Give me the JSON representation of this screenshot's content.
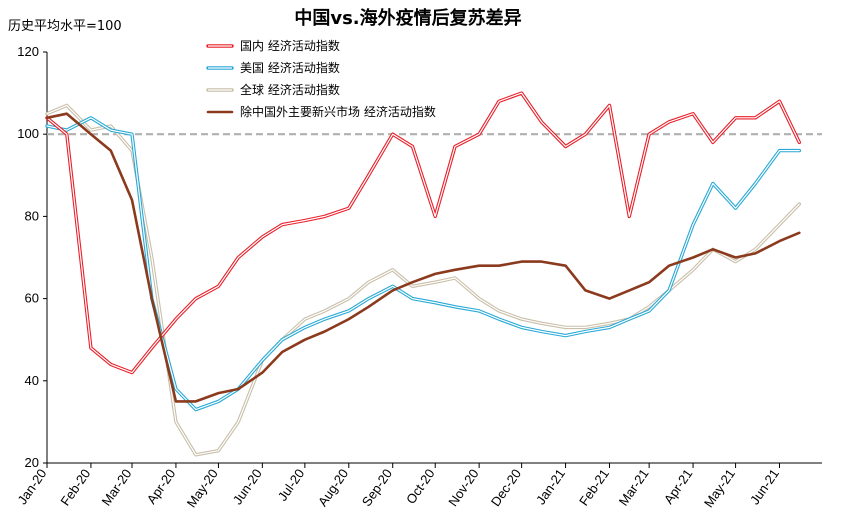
{
  "chart_data": {
    "type": "line",
    "title": "中国vs.海外疫情后复苏差异",
    "ylabel": "历史平均水平=100",
    "ylim": [
      20,
      120
    ],
    "yticks": [
      20,
      40,
      60,
      80,
      100,
      120
    ],
    "reference_line": {
      "value": 100,
      "color": "#b0b0b0",
      "style": "dashed"
    },
    "grid": false,
    "legend_position": "top-center",
    "x_tick_labels": [
      "Jan-20",
      "Feb-20",
      "Mar-20",
      "Apr-20",
      "May-20",
      "Jun-20",
      "Jul-20",
      "Aug-20",
      "Sep-20",
      "Oct-20",
      "Nov-20",
      "Dec-20",
      "Jan-21",
      "Feb-21",
      "Mar-21",
      "Apr-21",
      "May-21",
      "Jun-21"
    ],
    "x": [
      "2020-01-01",
      "2020-01-15",
      "2020-02-01",
      "2020-02-15",
      "2020-03-01",
      "2020-03-15",
      "2020-04-01",
      "2020-04-15",
      "2020-05-01",
      "2020-05-15",
      "2020-06-01",
      "2020-06-15",
      "2020-07-01",
      "2020-07-15",
      "2020-08-01",
      "2020-08-15",
      "2020-09-01",
      "2020-09-15",
      "2020-10-01",
      "2020-10-15",
      "2020-11-01",
      "2020-11-15",
      "2020-12-01",
      "2020-12-15",
      "2021-01-01",
      "2021-01-15",
      "2021-02-01",
      "2021-02-15",
      "2021-03-01",
      "2021-03-15",
      "2021-04-01",
      "2021-04-15",
      "2021-05-01",
      "2021-05-15",
      "2021-06-01",
      "2021-06-15"
    ],
    "series": [
      {
        "name": "国内 经济活动指数",
        "color": "#e8202a",
        "style": "double",
        "values": [
          104,
          100,
          48,
          44,
          42,
          48,
          55,
          60,
          63,
          70,
          75,
          78,
          79,
          80,
          82,
          90,
          100,
          97,
          80,
          97,
          100,
          108,
          110,
          103,
          97,
          100,
          107,
          80,
          100,
          103,
          105,
          98,
          104,
          104,
          108,
          98
        ]
      },
      {
        "name": "美国 经济活动指数",
        "color": "#29a9d6",
        "style": "double",
        "values": [
          102,
          101,
          104,
          101,
          100,
          60,
          38,
          33,
          35,
          38,
          45,
          50,
          53,
          55,
          57,
          60,
          63,
          60,
          59,
          58,
          57,
          55,
          53,
          52,
          51,
          52,
          53,
          55,
          57,
          62,
          78,
          88,
          82,
          88,
          96,
          96
        ]
      },
      {
        "name": "全球 经济活动指数",
        "color": "#c9bfa9",
        "style": "double",
        "values": [
          105,
          107,
          101,
          102,
          96,
          70,
          30,
          22,
          23,
          30,
          45,
          50,
          55,
          57,
          60,
          64,
          67,
          63,
          64,
          65,
          60,
          57,
          55,
          54,
          53,
          53,
          54,
          55,
          58,
          62,
          67,
          72,
          69,
          72,
          78,
          83
        ]
      },
      {
        "name": "除中国外主要新兴市场 经济活动指数",
        "color": "#8b3a1e",
        "style": "single",
        "values": [
          104,
          105,
          100,
          96,
          84,
          60,
          35,
          35,
          37,
          38,
          42,
          47,
          50,
          52,
          55,
          58,
          62,
          64,
          66,
          67,
          68,
          68,
          69,
          69,
          68,
          62,
          60,
          62,
          64,
          68,
          70,
          72,
          70,
          71,
          74,
          76
        ]
      }
    ]
  }
}
